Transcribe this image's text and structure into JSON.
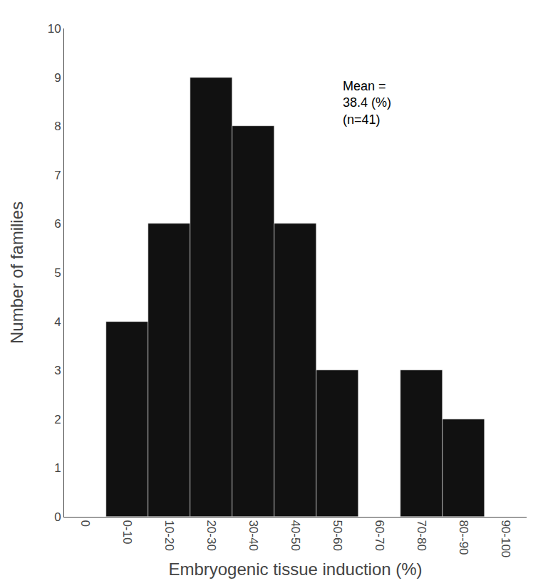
{
  "chart_data": {
    "type": "bar",
    "categories": [
      "0",
      "0-10",
      "10-20",
      "20-30",
      "30-40",
      "40-50",
      "50-60",
      "60-70",
      "70-80",
      "80--90",
      "90-100"
    ],
    "values": [
      0,
      4,
      6,
      9,
      8,
      6,
      3,
      0,
      3,
      2,
      0
    ],
    "color": "#111111",
    "xlabel": "Embryogenic tissue induction (%)",
    "ylabel": "Number of families",
    "annotation": "Mean =\n38.4 (%)\n(n=41)",
    "ylim": [
      0,
      10
    ],
    "yticks": [
      0,
      1,
      2,
      3,
      4,
      5,
      6,
      7,
      8,
      9,
      10
    ],
    "grid": false
  }
}
